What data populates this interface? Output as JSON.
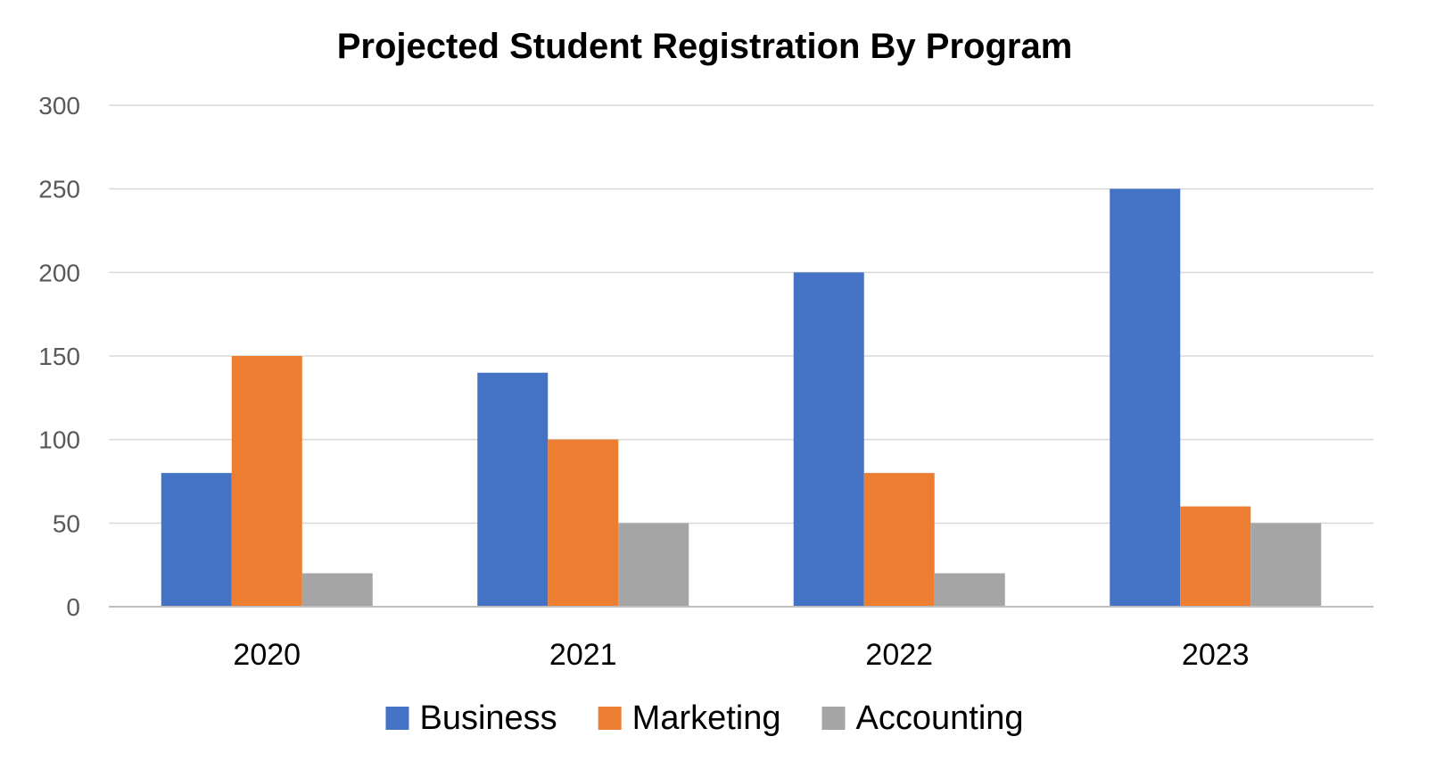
{
  "chart_data": {
    "type": "bar",
    "title": "Projected Student Registration By Program",
    "xlabel": "",
    "ylabel": "",
    "categories": [
      "2020",
      "2021",
      "2022",
      "2023"
    ],
    "series": [
      {
        "name": "Business",
        "color": "#4472c4",
        "values": [
          80,
          140,
          200,
          250
        ]
      },
      {
        "name": "Marketing",
        "color": "#ed7d31",
        "values": [
          150,
          100,
          80,
          60
        ]
      },
      {
        "name": "Accounting",
        "color": "#a5a5a5",
        "values": [
          20,
          50,
          20,
          50
        ]
      }
    ],
    "ylim": [
      0,
      300
    ],
    "yticks": [
      0,
      50,
      100,
      150,
      200,
      250,
      300
    ],
    "grid": true,
    "legend_position": "bottom"
  }
}
